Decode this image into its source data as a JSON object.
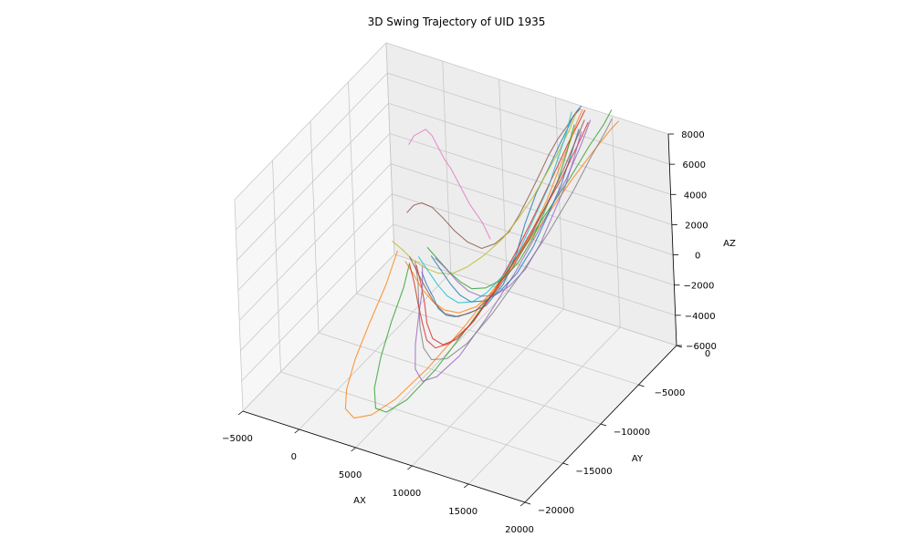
{
  "chart_data": {
    "type": "line",
    "projection": "3d",
    "title": "3D Swing Trajectory of UID 1935",
    "xlabel": "AX",
    "ylabel": "AY",
    "zlabel": "AZ",
    "xlim": [
      -5000,
      20000
    ],
    "ylim": [
      -20000,
      0
    ],
    "zlim": [
      -6000,
      8000
    ],
    "x_ticks": [
      "−5000",
      "0",
      "5000",
      "10000",
      "15000",
      "20000"
    ],
    "y_ticks": [
      "−20000",
      "−15000",
      "−10000",
      "−5000",
      "0"
    ],
    "z_ticks": [
      "−6000",
      "−4000",
      "−2000",
      "0",
      "2000",
      "4000",
      "6000",
      "8000"
    ],
    "grid": true,
    "legend": "none",
    "series_colors": [
      "#1f77b4",
      "#ff7f0e",
      "#2ca02c",
      "#d62728",
      "#9467bd",
      "#8c564b",
      "#e377c2",
      "#7f7f7f",
      "#bcbd22",
      "#17becf"
    ],
    "series": [
      {
        "x": [
          -1200,
          -400,
          800,
          2000,
          3200,
          4200,
          5400,
          6800,
          8000,
          8600,
          8800,
          9200,
          10000,
          10600,
          11200,
          11600,
          12000,
          12300
        ],
        "y": [
          -2000,
          -2600,
          -3500,
          -4600,
          -5300,
          -5600,
          -5600,
          -5300,
          -4700,
          -3800,
          -2800,
          -1800,
          -1100,
          -600,
          -300,
          -100,
          0,
          0
        ],
        "z": [
          -5200,
          -5500,
          -5600,
          -5500,
          -5300,
          -5000,
          -4500,
          -3800,
          -2400,
          -800,
          800,
          2400,
          4000,
          5300,
          6400,
          7200,
          7700,
          8000
        ]
      },
      {
        "x": [
          -4000,
          -3000,
          -1800,
          -400,
          1200,
          2800,
          4600,
          6400,
          8000,
          9600,
          11000,
          12200,
          13200,
          14000,
          14800,
          15400,
          15800
        ],
        "y": [
          -1000,
          -4000,
          -8000,
          -12000,
          -15500,
          -18000,
          -19500,
          -19800,
          -19000,
          -17000,
          -14000,
          -10500,
          -7000,
          -4000,
          -2000,
          -800,
          -300
        ],
        "z": [
          -5000,
          -5400,
          -5600,
          -5600,
          -5400,
          -5000,
          -4400,
          -3600,
          -2600,
          -1200,
          400,
          2200,
          4000,
          5600,
          6800,
          7600,
          8000
        ]
      },
      {
        "x": [
          -2600,
          -1600,
          -400,
          1200,
          3000,
          4800,
          6600,
          8200,
          9600,
          10800,
          11800,
          12600,
          13400,
          14000,
          14600,
          15000
        ],
        "y": [
          -1500,
          -3800,
          -7200,
          -11000,
          -14500,
          -17000,
          -18200,
          -17800,
          -16000,
          -13000,
          -9500,
          -6200,
          -3500,
          -1600,
          -500,
          0
        ],
        "z": [
          -5200,
          -5400,
          -5600,
          -5600,
          -5400,
          -5000,
          -4200,
          -3200,
          -1800,
          0,
          1800,
          3600,
          5200,
          6600,
          7600,
          8400
        ]
      },
      {
        "x": [
          -1800,
          -600,
          800,
          2200,
          3800,
          5400,
          6800,
          8000,
          9000,
          9800,
          10400,
          11000,
          11600,
          12200,
          12600
        ],
        "y": [
          -1800,
          -3000,
          -4600,
          -6400,
          -8000,
          -9000,
          -9200,
          -8600,
          -7200,
          -5400,
          -3600,
          -2000,
          -900,
          -300,
          0
        ],
        "z": [
          -5000,
          -5300,
          -5500,
          -5500,
          -5300,
          -4800,
          -4000,
          -2800,
          -1200,
          600,
          2400,
          4200,
          5800,
          7000,
          7800
        ]
      },
      {
        "x": [
          -1400,
          -200,
          1200,
          2800,
          4600,
          6400,
          8000,
          9400,
          10400,
          11200,
          11800,
          12400,
          12800,
          13200
        ],
        "y": [
          -1600,
          -3400,
          -6000,
          -8800,
          -11500,
          -13200,
          -13600,
          -12600,
          -10400,
          -7600,
          -4800,
          -2500,
          -1000,
          -200
        ],
        "z": [
          -5000,
          -5300,
          -5500,
          -5500,
          -5300,
          -4800,
          -3900,
          -2700,
          -1100,
          700,
          2600,
          4400,
          6000,
          7400
        ]
      },
      {
        "x": [
          -3600,
          -2800,
          -1800,
          -600,
          600,
          1800,
          3000,
          4200,
          5200,
          6200,
          7000,
          7800,
          8600,
          9400,
          10200,
          11000,
          11600,
          12200
        ],
        "y": [
          -200,
          -400,
          -800,
          -1200,
          -1600,
          -1900,
          -2000,
          -1900,
          -1600,
          -1200,
          -900,
          -600,
          -400,
          -300,
          -200,
          -100,
          -100,
          0
        ],
        "z": [
          -2800,
          -2000,
          -1400,
          -1200,
          -1400,
          -1800,
          -2200,
          -2400,
          -2000,
          -1200,
          0,
          1400,
          2800,
          4200,
          5400,
          6400,
          7200,
          7800
        ]
      },
      {
        "x": [
          -3200,
          -2600,
          -2000,
          -1400,
          -800,
          -200,
          400,
          1000,
          1600,
          2200,
          2800,
          3400,
          4000,
          4400,
          4800
        ],
        "y": [
          -200,
          -300,
          -400,
          -500,
          -600,
          -700,
          -800,
          -900,
          -1000,
          -1100,
          -1200,
          -1300,
          -1400,
          -1500,
          -1600
        ],
        "z": [
          1800,
          2600,
          3000,
          3400,
          3200,
          2600,
          2000,
          1600,
          1000,
          400,
          -200,
          -600,
          -1000,
          -1400,
          -1800
        ]
      },
      {
        "x": [
          -2200,
          -1000,
          400,
          2000,
          3800,
          5600,
          7400,
          9000,
          10400,
          11600,
          12600,
          13400,
          14000,
          14600,
          15000
        ],
        "y": [
          -1400,
          -2800,
          -4800,
          -7000,
          -9200,
          -10800,
          -11400,
          -11000,
          -9600,
          -7600,
          -5200,
          -3000,
          -1400,
          -400,
          0
        ],
        "z": [
          -5000,
          -5300,
          -5500,
          -5500,
          -5300,
          -4800,
          -4000,
          -2800,
          -1200,
          600,
          2400,
          4200,
          5800,
          7000,
          7800
        ]
      },
      {
        "x": [
          -4600,
          -3600,
          -2400,
          -1000,
          400,
          1800,
          3200,
          4600,
          6000,
          7200,
          8400,
          9400,
          10400,
          11200,
          11800
        ],
        "y": [
          -800,
          -1000,
          -1400,
          -1800,
          -2200,
          -2400,
          -2400,
          -2200,
          -1800,
          -1400,
          -1000,
          -600,
          -300,
          -100,
          0
        ],
        "z": [
          -4600,
          -4800,
          -5000,
          -5000,
          -4800,
          -4400,
          -3600,
          -2600,
          -1400,
          0,
          1600,
          3200,
          4800,
          6200,
          7400
        ]
      },
      {
        "x": [
          -2000,
          -800,
          600,
          2000,
          3400,
          4800,
          6000,
          7200,
          8200,
          9000,
          9800,
          10400,
          11000,
          11400
        ],
        "y": [
          -1200,
          -1800,
          -2600,
          -3400,
          -4000,
          -4200,
          -4000,
          -3400,
          -2600,
          -1800,
          -1000,
          -500,
          -200,
          0
        ],
        "z": [
          -4800,
          -5100,
          -5300,
          -5300,
          -5100,
          -4600,
          -3800,
          -2600,
          -1000,
          800,
          2600,
          4400,
          6000,
          7400
        ]
      },
      {
        "x": [
          -1000,
          200,
          1600,
          3000,
          4400,
          5800,
          7000,
          8200,
          9200,
          10000,
          10800,
          11400,
          12000
        ],
        "y": [
          -1000,
          -1600,
          -2400,
          -3200,
          -3800,
          -4000,
          -3800,
          -3200,
          -2400,
          -1600,
          -900,
          -400,
          0
        ],
        "z": [
          -4600,
          -4900,
          -5100,
          -5100,
          -4900,
          -4400,
          -3600,
          -2400,
          -800,
          1000,
          2800,
          4600,
          6400
        ]
      },
      {
        "x": [
          -3000,
          -1800,
          -400,
          1200,
          2800,
          4400,
          6000,
          7400,
          8600,
          9600,
          10400,
          11000,
          11600,
          12000,
          12400
        ],
        "y": [
          -1500,
          -2200,
          -3200,
          -4200,
          -5000,
          -5400,
          -5400,
          -5000,
          -4200,
          -3200,
          -2200,
          -1300,
          -600,
          -200,
          0
        ],
        "z": [
          -5200,
          -5400,
          -5500,
          -5400,
          -5200,
          -4800,
          -4000,
          -2800,
          -1200,
          600,
          2400,
          4200,
          5800,
          7000,
          7800
        ]
      },
      {
        "x": [
          -1600,
          -400,
          1000,
          2400,
          3800,
          5200,
          6600,
          7800,
          8800,
          9600,
          10400,
          11000,
          11600
        ],
        "y": [
          -600,
          -1000,
          -1600,
          -2200,
          -2800,
          -3000,
          -2800,
          -2400,
          -1800,
          -1200,
          -600,
          -200,
          0
        ],
        "z": [
          -4400,
          -4700,
          -4900,
          -4900,
          -4700,
          -4200,
          -3400,
          -2200,
          -600,
          1200,
          3000,
          4800,
          6600
        ]
      },
      {
        "x": [
          -2400,
          -1200,
          200,
          1800,
          3400,
          5000,
          6600,
          8000,
          9200,
          10200,
          11000,
          11800,
          12400,
          13000
        ],
        "y": [
          -1800,
          -3000,
          -4600,
          -6400,
          -8200,
          -9400,
          -9800,
          -9200,
          -7800,
          -6000,
          -4000,
          -2200,
          -900,
          -200
        ],
        "z": [
          -5100,
          -5400,
          -5600,
          -5600,
          -5400,
          -4900,
          -4000,
          -2800,
          -1200,
          600,
          2400,
          4200,
          5800,
          7200
        ]
      },
      {
        "x": [
          -800,
          400,
          1800,
          3200,
          4600,
          6000,
          7200,
          8400,
          9400,
          10200,
          11000,
          11600,
          12200
        ],
        "y": [
          -800,
          -1200,
          -1800,
          -2400,
          -2800,
          -3000,
          -2800,
          -2400,
          -1800,
          -1200,
          -600,
          -200,
          0
        ],
        "z": [
          -4800,
          -5000,
          -5200,
          -5200,
          -5000,
          -4500,
          -3700,
          -2500,
          -900,
          900,
          2700,
          4500,
          6300
        ]
      },
      {
        "x": [
          -2800,
          -1600,
          -200,
          1400,
          3000,
          4600,
          6200,
          7600,
          8800,
          9800,
          10600,
          11400,
          12000,
          12600
        ],
        "y": [
          -1200,
          -2000,
          -3000,
          -4200,
          -5200,
          -5800,
          -5800,
          -5400,
          -4600,
          -3600,
          -2400,
          -1400,
          -600,
          -100
        ],
        "z": [
          -5000,
          -5300,
          -5500,
          -5500,
          -5300,
          -4800,
          -4000,
          -2800,
          -1200,
          600,
          2400,
          4200,
          5800,
          7200
        ]
      }
    ]
  }
}
